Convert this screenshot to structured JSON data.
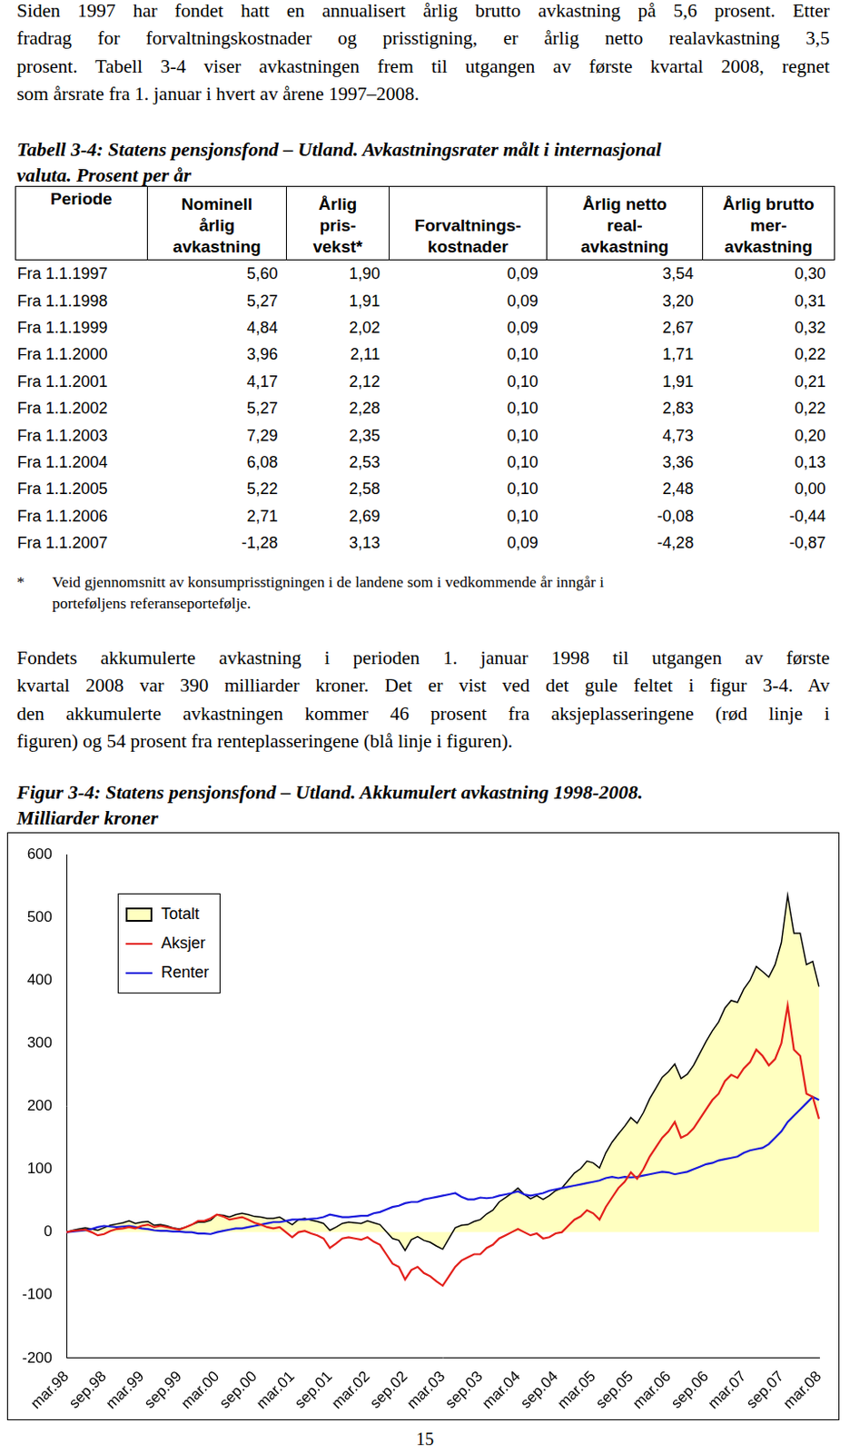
{
  "intro": {
    "lines": [
      "Siden 1997 har fondet hatt en annualisert årlig brutto avkastning på 5,6 prosent. Etter",
      "fradrag for forvaltningskostnader og prisstigning, er årlig netto realavkastning 3,5",
      "prosent. Tabell 3-4 viser avkastningen frem til utgangen av første kvartal 2008, regnet",
      "som årsrate fra 1. januar i hvert av årene 1997–2008."
    ]
  },
  "table": {
    "caption_lines": [
      "Tabell 3-4: Statens pensjonsfond – Utland. Avkastningsrater målt i internasjonal",
      "valuta. Prosent per år"
    ],
    "header": [
      [
        "Periode"
      ],
      [
        "Nominell",
        "årlig",
        "avkastning"
      ],
      [
        "Årlig",
        "pris-",
        "vekst*"
      ],
      [
        "Forvaltnings-",
        "kostnader"
      ],
      [
        "Årlig netto",
        "real-",
        "avkastning"
      ],
      [
        "Årlig brutto",
        "mer-",
        "avkastning"
      ]
    ],
    "rows": [
      [
        "Fra 1.1.1997",
        "5,60",
        "1,90",
        "0,09",
        "3,54",
        "0,30"
      ],
      [
        "Fra 1.1.1998",
        "5,27",
        "1,91",
        "0,09",
        "3,20",
        "0,31"
      ],
      [
        "Fra 1.1.1999",
        "4,84",
        "2,02",
        "0,09",
        "2,67",
        "0,32"
      ],
      [
        "Fra 1.1.2000",
        "3,96",
        "2,11",
        "0,10",
        "1,71",
        "0,22"
      ],
      [
        "Fra 1.1.2001",
        "4,17",
        "2,12",
        "0,10",
        "1,91",
        "0,21"
      ],
      [
        "Fra 1.1.2002",
        "5,27",
        "2,28",
        "0,10",
        "2,83",
        "0,22"
      ],
      [
        "Fra 1.1.2003",
        "7,29",
        "2,35",
        "0,10",
        "4,73",
        "0,20"
      ],
      [
        "Fra 1.1.2004",
        "6,08",
        "2,53",
        "0,10",
        "3,36",
        "0,13"
      ],
      [
        "Fra 1.1.2005",
        "5,22",
        "2,58",
        "0,10",
        "2,48",
        "0,00"
      ],
      [
        "Fra 1.1.2006",
        "2,71",
        "2,69",
        "0,10",
        "-0,08",
        "-0,44"
      ],
      [
        "Fra 1.1.2007",
        "-1,28",
        "3,13",
        "0,09",
        "-4,28",
        "-0,87"
      ]
    ],
    "footnote": {
      "mark": "*",
      "lines": [
        "Veid gjennomsnitt av konsumprisstigningen i de landene som i vedkommende år inngår i",
        "porteføljens referanseportefølje."
      ]
    }
  },
  "text_after_table": {
    "lines": [
      "Fondets akkumulerte avkastning i perioden 1. januar 1998 til utgangen av første",
      "kvartal 2008 var 390 milliarder kroner. Det er vist ved det gule feltet i figur 3-4. Av",
      "den akkumulerte avkastningen kommer 46 prosent fra aksjeplasseringene (rød linje i",
      "figuren) og 54 prosent fra renteplasseringene (blå linje i figuren)."
    ]
  },
  "figure": {
    "caption_lines": [
      "Figur 3-4: Statens pensjonsfond – Utland. Akkumulert avkastning 1998-2008.",
      "Milliarder kroner"
    ]
  },
  "chart_data": {
    "type": "line",
    "categories": [
      "mar.98",
      null,
      null,
      null,
      null,
      null,
      "sep.98",
      null,
      null,
      null,
      null,
      null,
      "mar.99",
      null,
      null,
      null,
      null,
      null,
      "sep.99",
      null,
      null,
      null,
      null,
      null,
      "mar.00",
      null,
      null,
      null,
      null,
      null,
      "sep.00",
      null,
      null,
      null,
      null,
      null,
      "mar.01",
      null,
      null,
      null,
      null,
      null,
      "sep.01",
      null,
      null,
      null,
      null,
      null,
      "mar.02",
      null,
      null,
      null,
      null,
      null,
      "sep.02",
      null,
      null,
      null,
      null,
      null,
      "mar.03",
      null,
      null,
      null,
      null,
      null,
      "sep.03",
      null,
      null,
      null,
      null,
      null,
      "mar.04",
      null,
      null,
      null,
      null,
      null,
      "sep.04",
      null,
      null,
      null,
      null,
      null,
      "mar.05",
      null,
      null,
      null,
      null,
      null,
      "sep.05",
      null,
      null,
      null,
      null,
      null,
      "mar.06",
      null,
      null,
      null,
      null,
      null,
      "sep.06",
      null,
      null,
      null,
      null,
      null,
      "mar.07",
      null,
      null,
      null,
      null,
      null,
      "sep.07",
      null,
      null,
      null,
      null,
      null,
      "mar.08"
    ],
    "series": [
      {
        "name": "Totalt",
        "type": "area",
        "color": "#ffffc0",
        "values": [
          0,
          3,
          5,
          7,
          5,
          3,
          7,
          11,
          13,
          15,
          18,
          14,
          16,
          17,
          11,
          12,
          10,
          7,
          5,
          8,
          12,
          16,
          16,
          19,
          28,
          27,
          24,
          28,
          30,
          28,
          25,
          24,
          22,
          22,
          24,
          18,
          12,
          20,
          22,
          19,
          17,
          14,
          3,
          8,
          14,
          16,
          15,
          14,
          18,
          15,
          12,
          1,
          -10,
          -13,
          -29,
          -12,
          -7,
          -13,
          -16,
          -22,
          -27,
          -10,
          7,
          11,
          12,
          17,
          20,
          29,
          35,
          48,
          55,
          62,
          70,
          60,
          53,
          58,
          52,
          58,
          66,
          70,
          82,
          94,
          101,
          113,
          110,
          102,
          126,
          143,
          156,
          168,
          182,
          173,
          190,
          212,
          229,
          246,
          255,
          267,
          244,
          251,
          265,
          284,
          303,
          320,
          334,
          356,
          368,
          365,
          386,
          400,
          422,
          414,
          405,
          425,
          460,
          535,
          475,
          475,
          425,
          430,
          390
        ]
      },
      {
        "name": "Aksjer",
        "type": "line",
        "color": "#e3201b",
        "values": [
          0,
          2,
          3,
          4,
          0,
          -5,
          -3,
          2,
          5,
          6,
          8,
          6,
          10,
          12,
          8,
          10,
          8,
          6,
          4,
          8,
          12,
          18,
          18,
          22,
          28,
          25,
          20,
          22,
          24,
          20,
          15,
          12,
          8,
          6,
          8,
          0,
          -8,
          0,
          2,
          -2,
          -5,
          -10,
          -25,
          -18,
          -10,
          -8,
          -10,
          -12,
          -8,
          -15,
          -20,
          -35,
          -50,
          -55,
          -75,
          -60,
          -55,
          -65,
          -70,
          -78,
          -85,
          -70,
          -55,
          -45,
          -40,
          -35,
          -35,
          -25,
          -20,
          -10,
          -5,
          0,
          5,
          0,
          -5,
          -2,
          -10,
          -8,
          -2,
          0,
          10,
          20,
          25,
          35,
          30,
          20,
          40,
          55,
          70,
          80,
          95,
          85,
          100,
          120,
          135,
          150,
          160,
          175,
          150,
          155,
          165,
          180,
          195,
          210,
          220,
          240,
          250,
          245,
          260,
          270,
          290,
          280,
          265,
          275,
          300,
          360,
          290,
          280,
          220,
          215,
          180
        ]
      },
      {
        "name": "Renter",
        "type": "line",
        "color": "#1a1adc",
        "values": [
          0,
          1,
          2,
          3,
          5,
          8,
          10,
          9,
          8,
          9,
          10,
          8,
          6,
          5,
          3,
          2,
          2,
          1,
          1,
          0,
          0,
          -2,
          -2,
          -3,
          0,
          2,
          4,
          6,
          6,
          8,
          10,
          12,
          14,
          16,
          16,
          18,
          20,
          20,
          20,
          21,
          22,
          24,
          28,
          26,
          24,
          24,
          25,
          26,
          26,
          30,
          32,
          36,
          40,
          42,
          46,
          48,
          48,
          52,
          54,
          56,
          58,
          60,
          62,
          56,
          52,
          52,
          55,
          54,
          55,
          58,
          60,
          62,
          65,
          60,
          58,
          60,
          62,
          66,
          68,
          70,
          72,
          74,
          76,
          78,
          80,
          82,
          86,
          88,
          86,
          88,
          87,
          88,
          90,
          92,
          94,
          96,
          95,
          92,
          94,
          96,
          100,
          104,
          108,
          110,
          114,
          116,
          118,
          120,
          126,
          130,
          132,
          134,
          140,
          150,
          160,
          175,
          185,
          195,
          205,
          215,
          210
        ]
      }
    ],
    "ylim": [
      -200,
      600
    ],
    "yticks": [
      -200,
      -100,
      0,
      100,
      200,
      300,
      400,
      500,
      600
    ],
    "grid": false,
    "legend": "upper left"
  },
  "page_number": "15"
}
